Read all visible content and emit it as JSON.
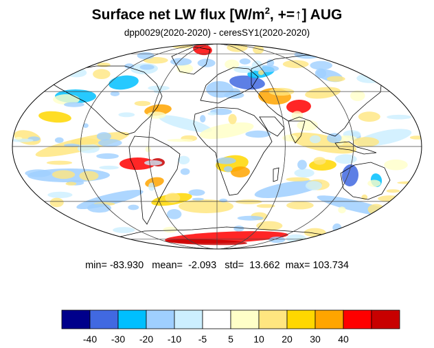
{
  "title": {
    "prefix": "Surface net LW flux [W/m",
    "superscript": "2",
    "middle": ", +=",
    "arrow": "↑",
    "suffix": "]  AUG"
  },
  "subtitle": "dpp0029(2020-2020) - ceresSY1(2020-2020)",
  "stats": {
    "min_label": "min=",
    "min": "-83.930",
    "mean_label": "mean=",
    "mean": "-2.093",
    "std_label": "std=",
    "std": "13.662",
    "max_label": "max=",
    "max": "103.734"
  },
  "colorbar": {
    "colors": [
      "#00008b",
      "#4169e1",
      "#00bfff",
      "#9fcfff",
      "#ccefff",
      "#ffffff",
      "#ffffc8",
      "#ffe680",
      "#ffd700",
      "#ffa500",
      "#ff0000",
      "#c80000"
    ],
    "labels": [
      "-40",
      "-30",
      "-20",
      "-10",
      "-5",
      "5",
      "10",
      "20",
      "30",
      "40"
    ]
  },
  "map": {
    "projection": "mollweide",
    "lon_lines": [
      -120,
      -60,
      0,
      60,
      120
    ],
    "lat_lines": [
      -60,
      -30,
      0,
      30,
      60
    ]
  }
}
